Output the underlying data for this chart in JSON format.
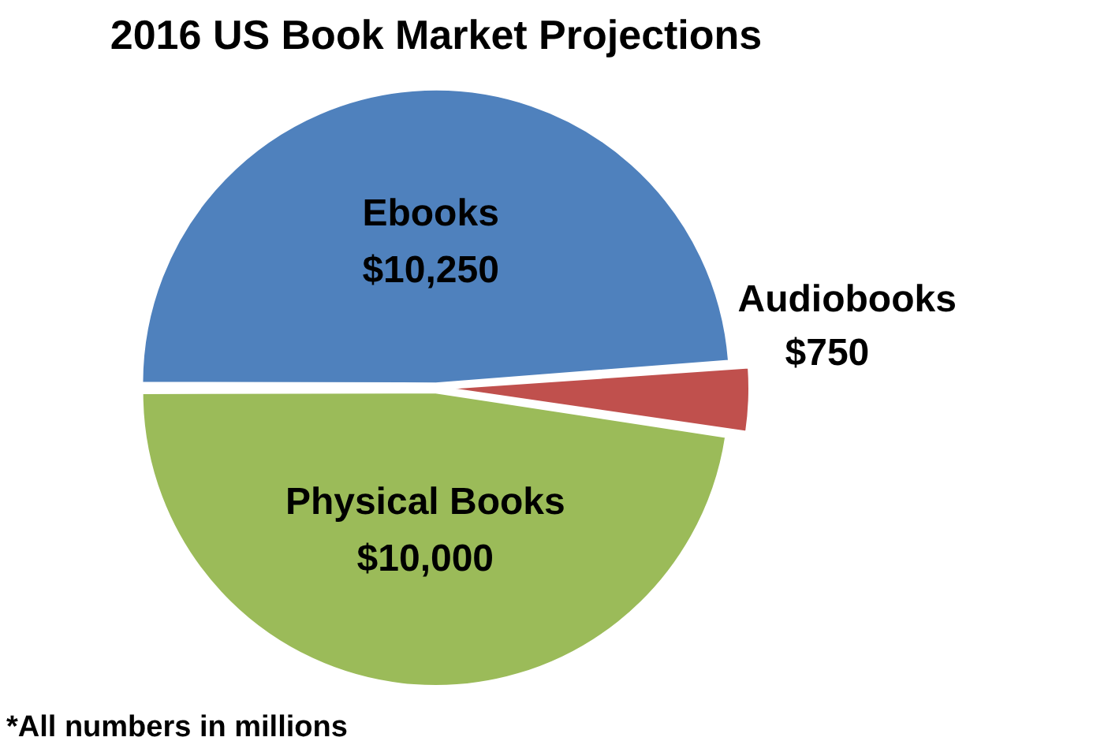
{
  "chart_data": {
    "type": "pie",
    "title": "2016 US Book Market Projections",
    "categories": [
      "Ebooks",
      "Audiobooks",
      "Physical Books"
    ],
    "values": [
      10250,
      750,
      10000
    ],
    "colors": [
      "#4f81bd",
      "#c0504d",
      "#9bbb59"
    ],
    "value_labels": [
      "$10,250",
      "$750",
      "$10,000"
    ],
    "annotations": [
      "*All numbers in millions"
    ]
  }
}
